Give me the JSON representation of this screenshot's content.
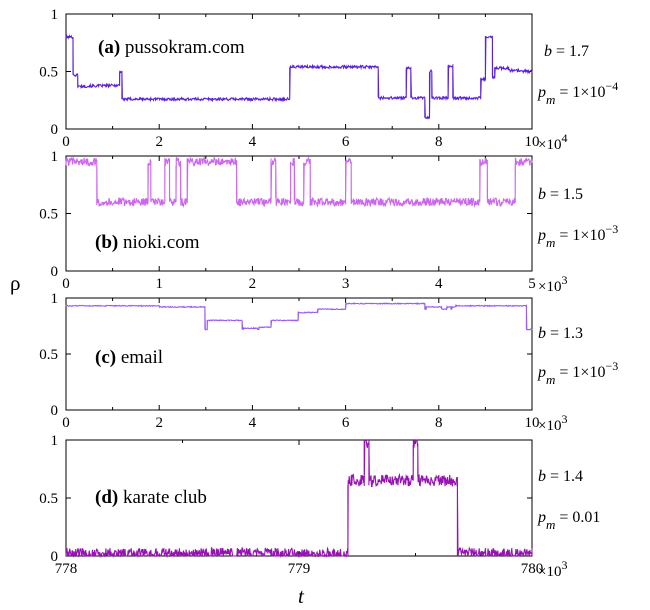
{
  "ylabel": "ρ",
  "xlabel": "t",
  "chart_data": [
    {
      "type": "line",
      "label_tag": "(a)",
      "label_text": "pussokram.com",
      "color": "#5b21d8",
      "b_text": "b = 1.7",
      "pm_value": "= 1×10",
      "pm_exp": "−4",
      "xlim": [
        0,
        100000
      ],
      "ylim": [
        0,
        1
      ],
      "x_ticks": [
        "0",
        "2",
        "4",
        "6",
        "8",
        "10"
      ],
      "x_multiplier": "×10",
      "x_multiplier_exp": "4",
      "y_ticks": [
        "0",
        "0.5",
        "1"
      ],
      "noise": 0.012,
      "series": [
        {
          "x": [
            0,
            1500,
            1500,
            2500,
            2500,
            11500,
            11500,
            12000,
            12000,
            48000,
            48000,
            67000,
            67000,
            73000,
            73000,
            74000,
            74000,
            77000,
            77000,
            78000,
            78000,
            78500,
            78500,
            82000,
            82000,
            83000,
            83000,
            84000,
            84000,
            89000,
            89000,
            90000,
            90000,
            91500,
            91500,
            92000,
            92000,
            95000,
            95000,
            100000
          ],
          "y": [
            0.8,
            0.8,
            0.47,
            0.47,
            0.37,
            0.38,
            0.5,
            0.5,
            0.26,
            0.26,
            0.54,
            0.54,
            0.27,
            0.27,
            0.53,
            0.53,
            0.27,
            0.27,
            0.1,
            0.1,
            0.5,
            0.5,
            0.27,
            0.27,
            0.55,
            0.55,
            0.27,
            0.27,
            0.27,
            0.27,
            0.43,
            0.43,
            0.8,
            0.8,
            0.45,
            0.45,
            0.53,
            0.53,
            0.51,
            0.5
          ]
        }
      ]
    },
    {
      "type": "line",
      "label_tag": "(b)",
      "label_text": "nioki.com",
      "color": "#cc66ee",
      "b_text": "b = 1.5",
      "pm_value": "= 1×10",
      "pm_exp": "−3",
      "xlim": [
        0,
        5000
      ],
      "ylim": [
        0,
        1
      ],
      "x_ticks": [
        "0",
        "1",
        "2",
        "3",
        "4",
        "5"
      ],
      "x_multiplier": "×10",
      "x_multiplier_exp": "3",
      "y_ticks": [
        "0",
        "0.5",
        "1"
      ],
      "noise": 0.035,
      "series": [
        {
          "x": [
            0,
            330,
            330,
            880,
            880,
            910,
            910,
            1060,
            1060,
            1110,
            1110,
            1180,
            1180,
            1230,
            1230,
            1300,
            1300,
            1830,
            1830,
            2200,
            2200,
            2250,
            2250,
            2410,
            2410,
            2450,
            2450,
            2550,
            2550,
            2620,
            2620,
            3000,
            3000,
            3060,
            3060,
            3150,
            3150,
            4440,
            4440,
            4520,
            4520,
            4820,
            4820,
            5000
          ],
          "y": [
            0.95,
            0.95,
            0.6,
            0.6,
            0.95,
            0.95,
            0.6,
            0.6,
            0.95,
            0.95,
            0.6,
            0.6,
            0.95,
            0.95,
            0.6,
            0.6,
            0.95,
            0.95,
            0.6,
            0.6,
            0.95,
            0.95,
            0.6,
            0.6,
            0.95,
            0.95,
            0.6,
            0.6,
            0.95,
            0.95,
            0.6,
            0.6,
            0.95,
            0.95,
            0.6,
            0.6,
            0.6,
            0.6,
            0.95,
            0.95,
            0.6,
            0.6,
            0.95,
            0.95
          ]
        }
      ]
    },
    {
      "type": "line",
      "label_tag": "(c)",
      "label_text": "email",
      "color": "#9b5cf0",
      "b_text": "b = 1.3",
      "pm_value": "= 1×10",
      "pm_exp": "−3",
      "xlim": [
        0,
        10000
      ],
      "ylim": [
        0,
        1
      ],
      "x_ticks": [
        "0",
        "2",
        "4",
        "6",
        "8",
        "10"
      ],
      "x_multiplier": "×10",
      "x_multiplier_exp": "3",
      "y_ticks": [
        "0",
        "0.5",
        "1"
      ],
      "noise": 0.004,
      "series": [
        {
          "x": [
            0,
            2000,
            2000,
            2980,
            2980,
            3030,
            3030,
            3780,
            3780,
            3800,
            3800,
            4110,
            4110,
            4140,
            4140,
            4400,
            4400,
            4980,
            4980,
            5400,
            5400,
            6000,
            6000,
            7700,
            7700,
            7730,
            7730,
            8060,
            8060,
            8170,
            8170,
            8260,
            8260,
            8280,
            8280,
            8360,
            8360,
            9880,
            9880,
            10000
          ],
          "y": [
            0.93,
            0.93,
            0.92,
            0.92,
            0.72,
            0.72,
            0.8,
            0.8,
            0.72,
            0.72,
            0.73,
            0.73,
            0.72,
            0.72,
            0.74,
            0.74,
            0.8,
            0.8,
            0.87,
            0.87,
            0.9,
            0.9,
            0.95,
            0.95,
            0.9,
            0.9,
            0.92,
            0.92,
            0.9,
            0.9,
            0.92,
            0.92,
            0.9,
            0.9,
            0.92,
            0.92,
            0.93,
            0.93,
            0.72,
            0.72
          ]
        }
      ]
    },
    {
      "type": "line",
      "label_tag": "(d)",
      "label_text": "karate club",
      "color": "#9612b3",
      "b_text": "b = 1.4",
      "pm_value": "= 0.01",
      "pm_exp": "",
      "xlim": [
        778000,
        780000
      ],
      "ylim": [
        0,
        1
      ],
      "x_ticks": [
        "778",
        "779",
        "780"
      ],
      "x_multiplier": "×10",
      "x_multiplier_exp": "3",
      "y_ticks": [
        "0",
        "0.5",
        "1"
      ],
      "noise": 0.05,
      "series": [
        {
          "x": [
            778000,
            779210,
            779210,
            779280,
            779280,
            779300,
            779300,
            779490,
            779490,
            779510,
            779510,
            779680,
            779680,
            780000
          ],
          "y": [
            0.02,
            0.02,
            0.65,
            0.65,
            0.97,
            0.97,
            0.65,
            0.65,
            0.97,
            0.97,
            0.65,
            0.65,
            0.02,
            0.02
          ]
        }
      ]
    }
  ]
}
